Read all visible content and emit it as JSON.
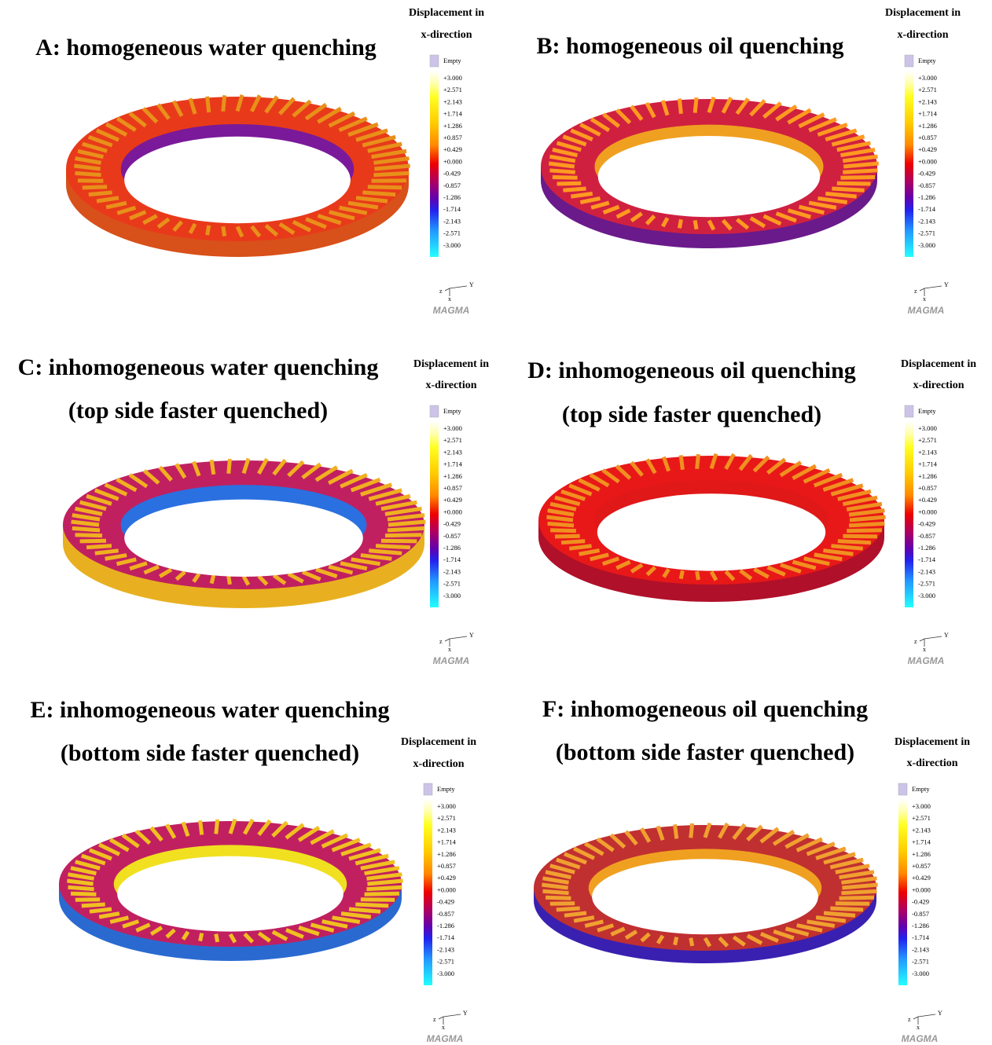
{
  "panels": [
    {
      "title": [
        "A: homogeneous water quenching"
      ],
      "legend_title": [
        "Displacement in",
        "x-direction"
      ]
    },
    {
      "title": [
        "B: homogeneous oil quenching"
      ],
      "legend_title": [
        "Displacement in",
        "x-direction"
      ]
    },
    {
      "title": [
        "C: inhomogeneous water quenching",
        "(top side faster quenched)"
      ],
      "legend_title": [
        "Displacement in",
        "x-direction"
      ]
    },
    {
      "title": [
        "D: inhomogeneous oil quenching",
        "(top side faster quenched)"
      ],
      "legend_title": [
        "Displacement in",
        "x-direction"
      ]
    },
    {
      "title": [
        "E: inhomogeneous water quenching",
        "(bottom side faster quenched)"
      ],
      "legend_title": [
        "Displacement in",
        "x-direction"
      ]
    },
    {
      "title": [
        "F: inhomogeneous oil quenching",
        "(bottom side faster quenched)"
      ],
      "legend_title": [
        "Displacement in",
        "x-direction"
      ]
    }
  ],
  "legend_labels": [
    "Empty",
    "+3.000",
    "+2.571",
    "+2.143",
    "+1.714",
    "+1.286",
    "+0.857",
    "+0.429",
    "+0.000",
    "-0.429",
    "-0.857",
    "-1.286",
    "-1.714",
    "-2.143",
    "-2.571",
    "-3.000"
  ],
  "axis_labels": [
    "z",
    "Y",
    "x"
  ],
  "logo": "MAGMA"
}
